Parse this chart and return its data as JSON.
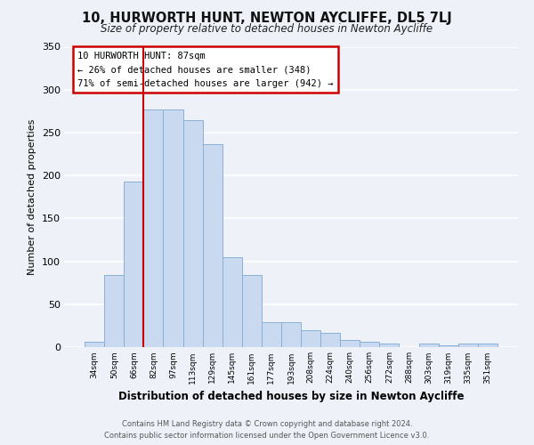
{
  "title": "10, HURWORTH HUNT, NEWTON AYCLIFFE, DL5 7LJ",
  "subtitle": "Size of property relative to detached houses in Newton Aycliffe",
  "xlabel": "Distribution of detached houses by size in Newton Aycliffe",
  "ylabel": "Number of detached properties",
  "bar_color": "#c8d9f0",
  "bar_edge_color": "#8ab0d8",
  "background_color": "#eef2f8",
  "grid_color": "#ffffff",
  "categories": [
    "34sqm",
    "50sqm",
    "66sqm",
    "82sqm",
    "97sqm",
    "113sqm",
    "129sqm",
    "145sqm",
    "161sqm",
    "177sqm",
    "193sqm",
    "208sqm",
    "224sqm",
    "240sqm",
    "256sqm",
    "272sqm",
    "288sqm",
    "303sqm",
    "319sqm",
    "335sqm",
    "351sqm"
  ],
  "values": [
    6,
    84,
    193,
    277,
    277,
    264,
    236,
    105,
    84,
    29,
    29,
    20,
    17,
    8,
    6,
    4,
    0,
    4,
    2,
    4,
    4
  ],
  "ylim": [
    0,
    350
  ],
  "yticks": [
    0,
    50,
    100,
    150,
    200,
    250,
    300,
    350
  ],
  "property_line_label": "10 HURWORTH HUNT: 87sqm",
  "annotation_line1": "← 26% of detached houses are smaller (348)",
  "annotation_line2": "71% of semi-detached houses are larger (942) →",
  "annotation_box_color": "#ffffff",
  "annotation_box_edge_color": "#cc0000",
  "red_line_color": "#cc0000",
  "footer_line1": "Contains HM Land Registry data © Crown copyright and database right 2024.",
  "footer_line2": "Contains public sector information licensed under the Open Government Licence v3.0."
}
